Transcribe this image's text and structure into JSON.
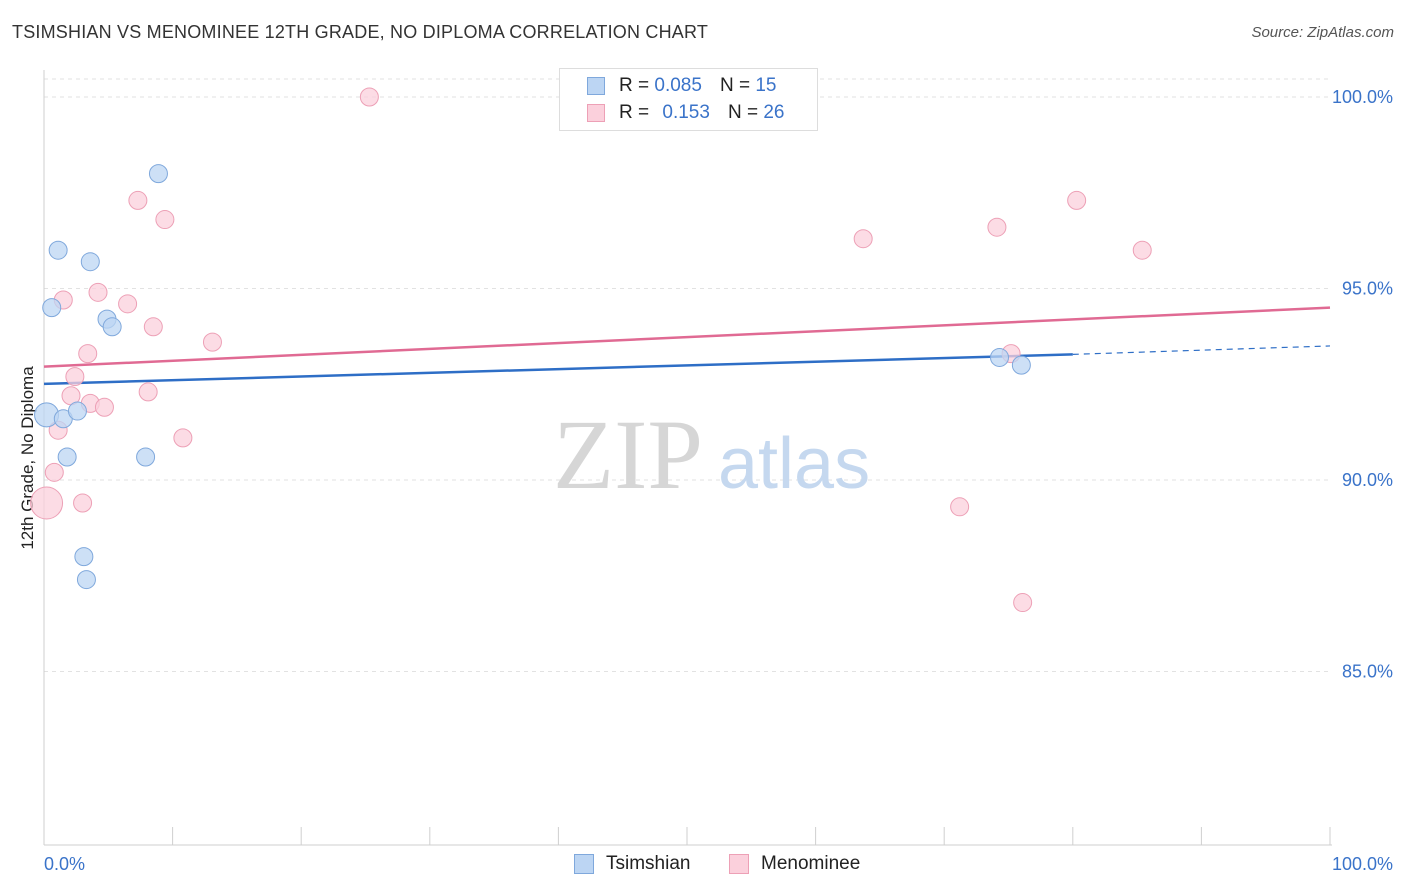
{
  "header": {
    "title": "TSIMSHIAN VS MENOMINEE 12TH GRADE, NO DIPLOMA CORRELATION CHART",
    "source": "Source: ZipAtlas.com"
  },
  "legend": {
    "rows": [
      {
        "r_label": "R =",
        "r_value": "0.085",
        "n_label": "N =",
        "n_value": "15"
      },
      {
        "r_label": "R =",
        "r_value": "0.153",
        "n_label": "N =",
        "n_value": "26"
      }
    ]
  },
  "bottom_legend": {
    "series_a": "Tsimshian",
    "series_b": "Menominee"
  },
  "watermark": {
    "zip": "ZIP",
    "atlas": "atlas"
  },
  "colors": {
    "tsimshian_fill": "#bcd5f3",
    "tsimshian_stroke": "#7fa8dc",
    "tsimshian_line": "#2e6ec6",
    "menominee_fill": "#fbd0dc",
    "menominee_stroke": "#eda0b6",
    "menominee_line": "#e06a93",
    "tick_text": "#3a73c9"
  },
  "chart_data": {
    "type": "scatter",
    "title": "TSIMSHIAN VS MENOMINEE 12TH GRADE, NO DIPLOMA CORRELATION CHART",
    "xlabel": "",
    "ylabel": "12th Grade, No Diploma",
    "xlim": [
      0,
      100
    ],
    "ylim": [
      80.5,
      101.0
    ],
    "x_tick_labels": [
      "0.0%",
      "100.0%"
    ],
    "y_ticks": [
      85,
      90,
      95,
      100
    ],
    "y_tick_labels": [
      "85.0%",
      "90.0%",
      "95.0%",
      "100.0%"
    ],
    "grid": true,
    "series": [
      {
        "name": "Tsimshian",
        "points": [
          {
            "x": 0.2,
            "y": 91.7,
            "size": 12
          },
          {
            "x": 0.6,
            "y": 94.5,
            "size": 9
          },
          {
            "x": 1.1,
            "y": 96.0,
            "size": 9
          },
          {
            "x": 1.5,
            "y": 91.6,
            "size": 9
          },
          {
            "x": 1.8,
            "y": 90.6,
            "size": 9
          },
          {
            "x": 2.6,
            "y": 91.8,
            "size": 9
          },
          {
            "x": 3.1,
            "y": 88.0,
            "size": 9
          },
          {
            "x": 3.3,
            "y": 87.4,
            "size": 9
          },
          {
            "x": 3.6,
            "y": 95.7,
            "size": 9
          },
          {
            "x": 4.9,
            "y": 94.2,
            "size": 9
          },
          {
            "x": 5.3,
            "y": 94.0,
            "size": 9
          },
          {
            "x": 7.9,
            "y": 90.6,
            "size": 9
          },
          {
            "x": 8.9,
            "y": 98.0,
            "size": 9
          },
          {
            "x": 74.3,
            "y": 93.2,
            "size": 9
          },
          {
            "x": 76.0,
            "y": 93.0,
            "size": 9
          }
        ],
        "trend": {
          "x_start": 0,
          "y_start": 92.51,
          "x_end": 80,
          "y_end": 93.28,
          "x_dash_end": 100,
          "y_dash_end": 93.5
        }
      },
      {
        "name": "Menominee",
        "points": [
          {
            "x": 0.2,
            "y": 89.4,
            "size": 16
          },
          {
            "x": 0.8,
            "y": 90.2,
            "size": 9
          },
          {
            "x": 1.1,
            "y": 91.3,
            "size": 9
          },
          {
            "x": 1.5,
            "y": 94.7,
            "size": 9
          },
          {
            "x": 2.1,
            "y": 92.2,
            "size": 9
          },
          {
            "x": 2.4,
            "y": 92.7,
            "size": 9
          },
          {
            "x": 3.0,
            "y": 89.4,
            "size": 9
          },
          {
            "x": 3.4,
            "y": 93.3,
            "size": 9
          },
          {
            "x": 3.6,
            "y": 92.0,
            "size": 9
          },
          {
            "x": 4.2,
            "y": 94.9,
            "size": 9
          },
          {
            "x": 4.7,
            "y": 91.9,
            "size": 9
          },
          {
            "x": 6.5,
            "y": 94.6,
            "size": 9
          },
          {
            "x": 7.3,
            "y": 97.3,
            "size": 9
          },
          {
            "x": 8.1,
            "y": 92.3,
            "size": 9
          },
          {
            "x": 8.5,
            "y": 94.0,
            "size": 9
          },
          {
            "x": 9.4,
            "y": 96.8,
            "size": 9
          },
          {
            "x": 10.8,
            "y": 91.1,
            "size": 9
          },
          {
            "x": 13.1,
            "y": 93.6,
            "size": 9
          },
          {
            "x": 25.3,
            "y": 100.0,
            "size": 9
          },
          {
            "x": 63.7,
            "y": 96.3,
            "size": 9
          },
          {
            "x": 71.2,
            "y": 89.3,
            "size": 9
          },
          {
            "x": 74.1,
            "y": 96.6,
            "size": 9
          },
          {
            "x": 75.2,
            "y": 93.3,
            "size": 9
          },
          {
            "x": 76.1,
            "y": 86.8,
            "size": 9
          },
          {
            "x": 80.3,
            "y": 97.3,
            "size": 9
          },
          {
            "x": 85.4,
            "y": 96.0,
            "size": 9
          }
        ],
        "trend": {
          "x_start": 0,
          "y_start": 92.96,
          "x_end": 100,
          "y_end": 94.5
        }
      }
    ]
  }
}
